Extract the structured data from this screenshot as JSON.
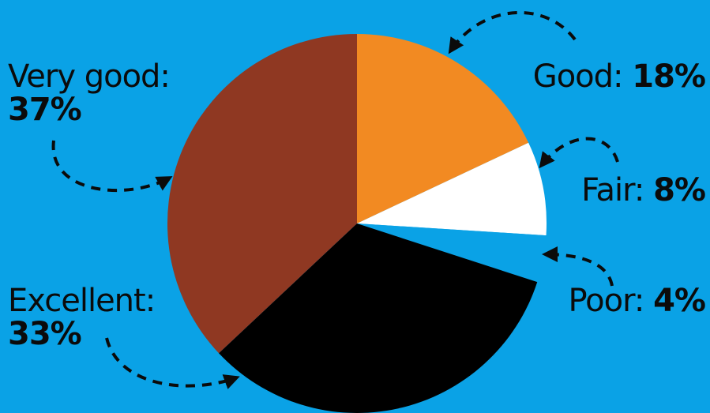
{
  "chart_data": {
    "type": "pie",
    "title": "",
    "start_angle_deg": 0,
    "direction": "clockwise",
    "slices": [
      {
        "label": "Good",
        "value": 18,
        "display": "18%",
        "color": "#f28a22"
      },
      {
        "label": "Fair",
        "value": 8,
        "display": "8%",
        "color": "#ffffff"
      },
      {
        "label": "Poor",
        "value": 4,
        "display": "4%",
        "color": "#0aa2e6"
      },
      {
        "label": "Excellent",
        "value": 33,
        "display": "33%",
        "color": "#000000"
      },
      {
        "label": "Very good",
        "value": 37,
        "display": "37%",
        "color": "#8f3822"
      }
    ]
  },
  "labels": {
    "good_name": "Good",
    "good_sep": ":",
    "good_pct": "18%",
    "fair_name": "Fair",
    "fair_sep": ":",
    "fair_pct": "8%",
    "poor_name": "Poor",
    "poor_sep": ":",
    "poor_pct": "4%",
    "very_good_name": "Very good:",
    "very_good_pct": "37%",
    "excellent_name": "Excellent:",
    "excellent_pct": "33%"
  },
  "colors": {
    "background": "#0aa2e6",
    "arrow": "#0b0b0b",
    "text": "#0b0b0b"
  }
}
